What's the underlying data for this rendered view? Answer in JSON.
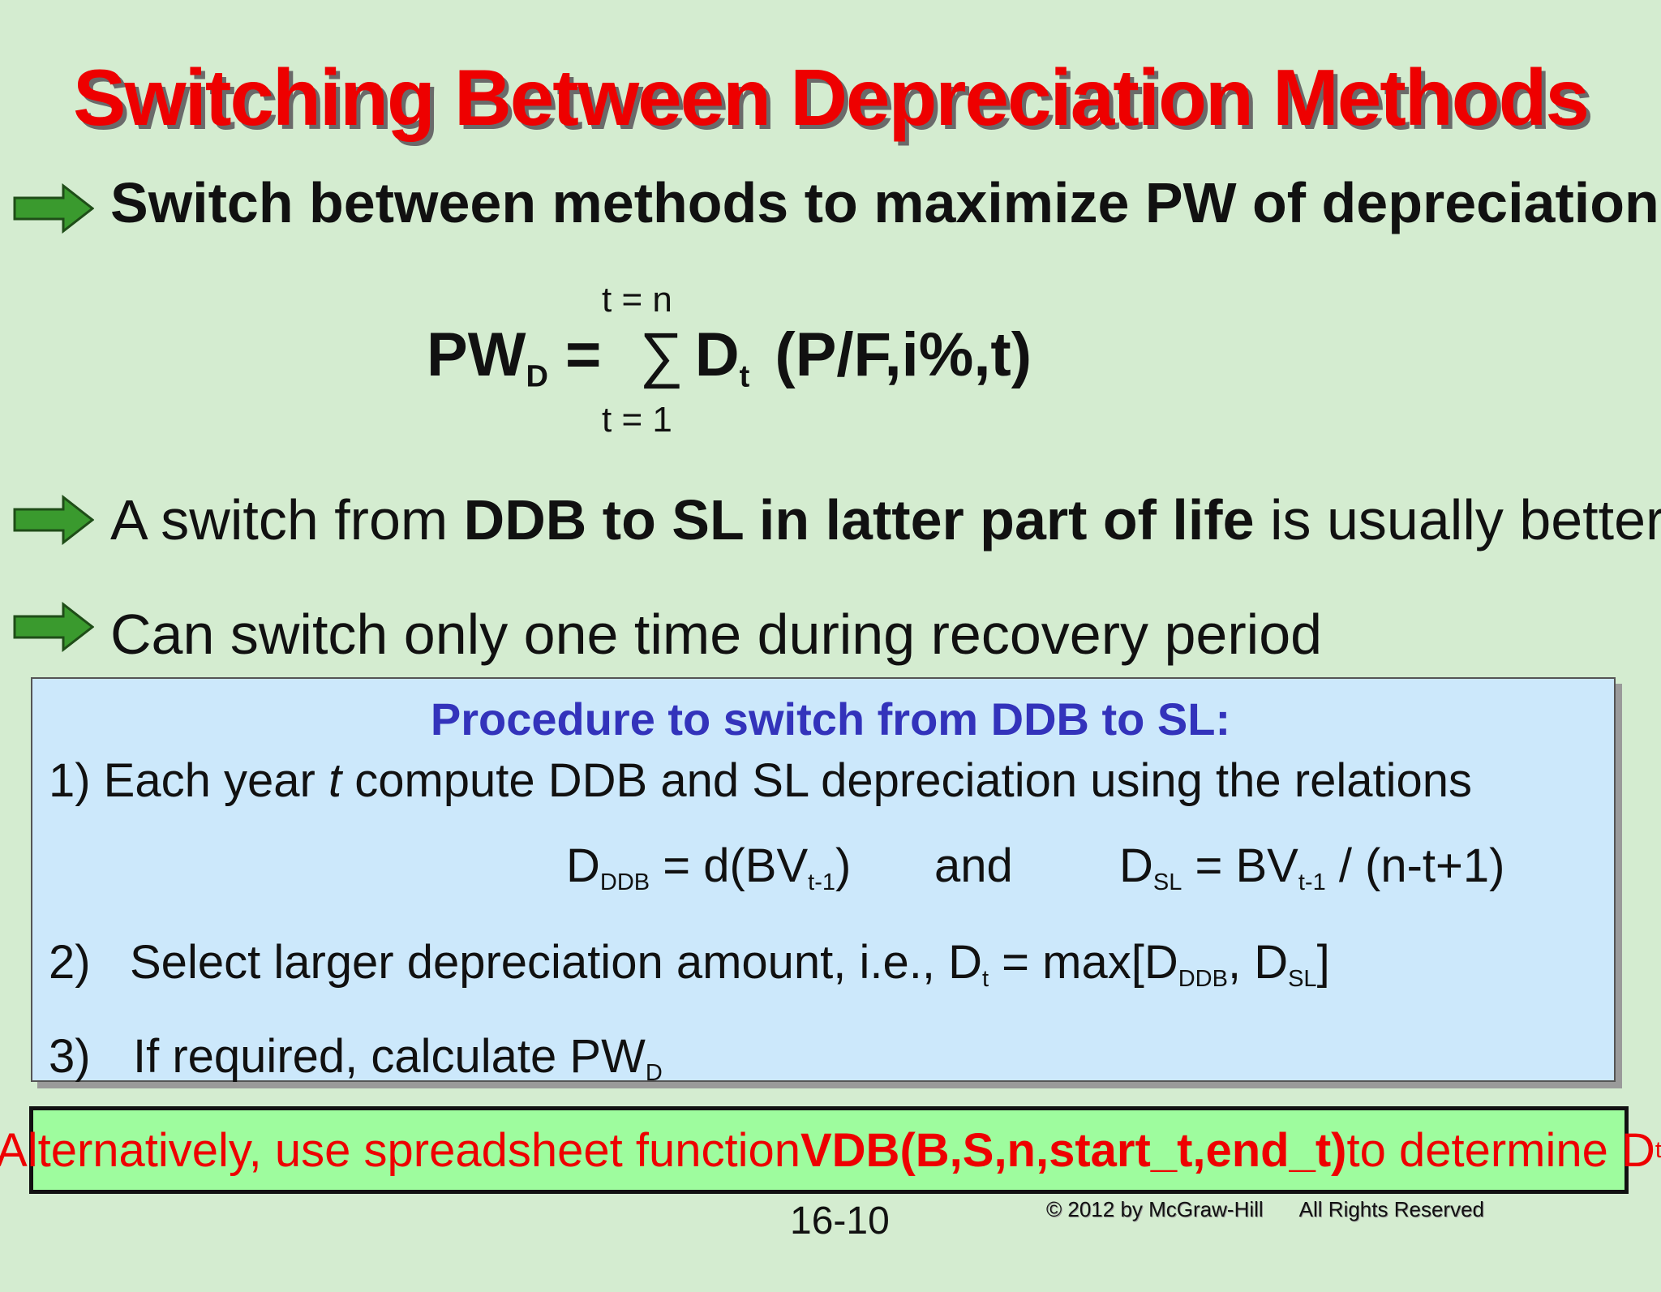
{
  "title": "Switching Between Depreciation Methods",
  "bullets": [
    {
      "text": "Switch between methods to maximize PW of depreciation"
    },
    {
      "pre": "A switch from ",
      "bold": "DDB to SL in latter part of life",
      "post": " is usually better"
    },
    {
      "text": "Can switch only one time during recovery period"
    }
  ],
  "formula": {
    "lhs": "PW",
    "lhs_sub": "D",
    "equals": "=",
    "sum_symbol": "∑",
    "upper_limit": "t = n",
    "lower_limit": "t = 1",
    "term": "D",
    "term_sub": "t",
    "factor": "(P/F,i%,t)"
  },
  "procedure": {
    "heading": "Procedure to switch from DDB to SL:",
    "step1": {
      "pre": "1) Each year ",
      "italic": "t",
      "post": " compute DDB and SL depreciation using the relations"
    },
    "relations": {
      "ddb_lhs": "D",
      "ddb_lhs_sub": "DDB",
      "ddb_mid": " = d(BV",
      "ddb_sub": "t-1",
      "ddb_end": ")",
      "and": "and",
      "sl_lhs": "D",
      "sl_lhs_sub": "SL",
      "sl_mid": " = BV",
      "sl_sub": "t-1",
      "sl_end": " / (n-t+1)"
    },
    "step2": {
      "num": "2)",
      "text": "Select larger depreciation amount, i.e., D",
      "sub_t": "t",
      "mid": " = max[D",
      "sub_ddb": "DDB",
      "sep": ", D",
      "sub_sl": "SL",
      "end": "]"
    },
    "step3": {
      "num": "3)",
      "text": "If required, calculate PW",
      "sub": "D"
    }
  },
  "alternative": {
    "pre": "Alternatively, use spreadsheet function ",
    "bold": "VDB(B,S,n,start_t,end_t)",
    "post": " to determine D",
    "sub": "t"
  },
  "footer": {
    "page_number": "16-10",
    "copyright": "© 2012 by McGraw-Hill",
    "rights": "All Rights Reserved"
  },
  "colors": {
    "background": "#d4ecd0",
    "title": "#ee0000",
    "arrow": "#3a9a2e",
    "heading": "#3333bb",
    "procedure_box": "#cce8fb",
    "alt_box": "#9efc9e"
  }
}
